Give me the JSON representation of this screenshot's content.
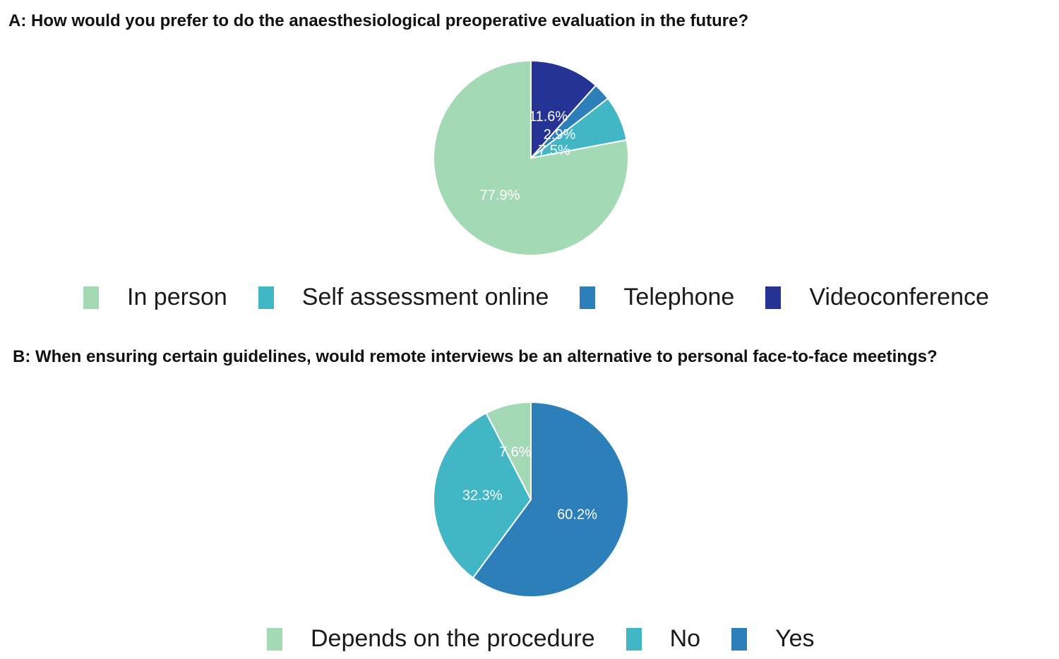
{
  "chart_data": [
    {
      "type": "pie",
      "title": "A:  How would you prefer to do the anaesthesiological preoperative evaluation in the future?",
      "categories": [
        "In person",
        "Self assessment online",
        "Telephone",
        "Videoconference"
      ],
      "values": [
        77.9,
        7.5,
        2.9,
        11.6
      ],
      "labels": [
        "77.9%",
        "7.5%",
        "2.9%",
        "11.6%"
      ],
      "colors": [
        "#a3d9b4",
        "#41b6c4",
        "#2c7fb8",
        "#253494"
      ],
      "legend_position": "bottom"
    },
    {
      "type": "pie",
      "title": "B:  When ensuring certain guidelines, would remote interviews be an alternative to personal face-to-face meetings?",
      "categories": [
        "Depends on the procedure",
        "No",
        "Yes"
      ],
      "values": [
        7.6,
        32.3,
        60.2
      ],
      "labels": [
        "7.6%",
        "32.3%",
        "60.2%"
      ],
      "colors": [
        "#a3d9b4",
        "#41b6c4",
        "#2c7fb8"
      ],
      "legend_position": "bottom"
    }
  ]
}
